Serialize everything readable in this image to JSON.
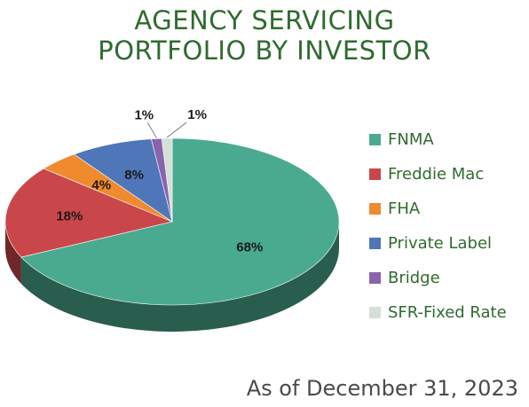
{
  "title_lines": [
    "AGENCY SERVICING",
    "PORTFOLIO BY INVESTOR"
  ],
  "footer": "As of December 31, 2023",
  "chart_data": {
    "type": "pie",
    "title": "AGENCY SERVICING PORTFOLIO BY INVESTOR",
    "categories": [
      "FNMA",
      "Freddie Mac",
      "FHA",
      "Private Label",
      "Bridge",
      "SFR-Fixed Rate"
    ],
    "values": [
      68,
      18,
      4,
      8,
      1,
      1
    ],
    "labels": [
      "68%",
      "18%",
      "4%",
      "8%",
      "1%",
      "1%"
    ],
    "colors": [
      "#4aaa90",
      "#c9474a",
      "#f08a2e",
      "#4f76b8",
      "#8a63ad",
      "#d4dfd6"
    ],
    "legend_position": "right",
    "style": "3d"
  }
}
